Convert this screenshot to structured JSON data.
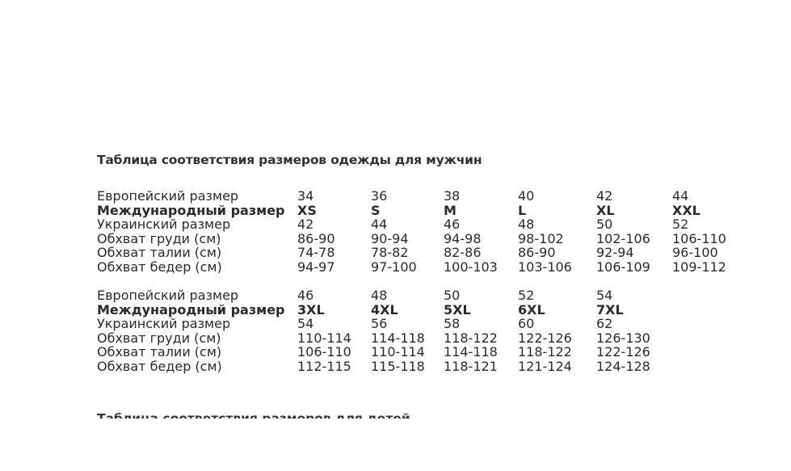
{
  "title": "Таблица соответствия размеров одежды для мужчин",
  "tables": [
    {
      "rows": [
        {
          "label": "Европейский размер",
          "values": [
            "34",
            "36",
            "38",
            "40",
            "42",
            "44"
          ],
          "bold": false
        },
        {
          "label": "Международный размер",
          "values": [
            "XS",
            "S",
            "M",
            "L",
            "XL",
            "XXL"
          ],
          "bold": true
        },
        {
          "label": "Украинский размер",
          "values": [
            "42",
            "44",
            "46",
            "48",
            "50",
            "52"
          ],
          "bold": false
        },
        {
          "label": "Обхват груди (см)",
          "values": [
            "86-90",
            "90-94",
            "94-98",
            "98-102",
            "102-106",
            "106-110"
          ],
          "bold": false
        },
        {
          "label": "Обхват талии (см)",
          "values": [
            "74-78",
            "78-82",
            "82-86",
            "86-90",
            "92-94",
            "96-100"
          ],
          "bold": false
        },
        {
          "label": "Обхват бедер (см)",
          "values": [
            "94-97",
            "97-100",
            "100-103",
            "103-106",
            "106-109",
            "109-112"
          ],
          "bold": false
        }
      ]
    },
    {
      "rows": [
        {
          "label": "Европейский размер",
          "values": [
            "46",
            "48",
            "50",
            "52",
            "54"
          ],
          "bold": false
        },
        {
          "label": "Международный размер",
          "values": [
            "3XL",
            "4XL",
            "5XL",
            "6XL",
            "7XL"
          ],
          "bold": true
        },
        {
          "label": "Украинский размер",
          "values": [
            "54",
            "56",
            "58",
            "60",
            "62"
          ],
          "bold": false
        },
        {
          "label": "Обхват груди (см)",
          "values": [
            "110-114",
            "114-118",
            "118-122",
            "122-126",
            "126-130"
          ],
          "bold": false
        },
        {
          "label": "Обхват талии (см)",
          "values": [
            "106-110",
            "110-114",
            "114-118",
            "118-122",
            "122-126"
          ],
          "bold": false
        },
        {
          "label": "Обхват бедер (см)",
          "values": [
            "112-115",
            "115-118",
            "118-121",
            "121-124",
            "124-128"
          ],
          "bold": false
        }
      ]
    }
  ],
  "next_title": "Таблица соответствия размеров для детей"
}
